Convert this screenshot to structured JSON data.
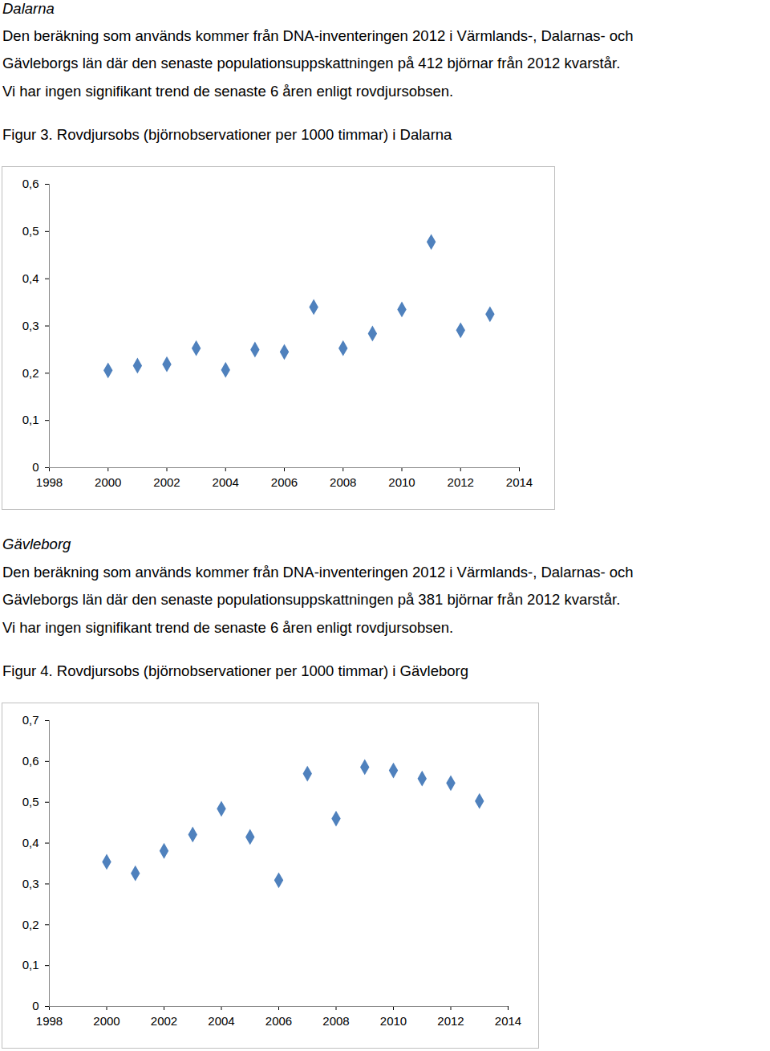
{
  "sections": [
    {
      "heading": "Dalarna",
      "lines": [
        "Den beräkning som används kommer från DNA-inventeringen 2012 i Värmlands-, Dalarnas- och",
        "Gävleborgs län där den senaste populationsuppskattningen på 412 björnar från 2012 kvarstår.",
        "Vi har ingen signifikant trend de senaste 6 åren enligt rovdjursobsen."
      ]
    },
    {
      "heading": "Gävleborg",
      "lines": [
        "Den beräkning som används kommer från DNA-inventeringen 2012 i Värmlands-, Dalarnas- och",
        "Gävleborgs län där den senaste populationsuppskattningen på 381 björnar från 2012 kvarstår.",
        "Vi har ingen signifikant trend de senaste 6 åren enligt rovdjursobsen."
      ]
    }
  ],
  "chart_data": [
    {
      "type": "scatter",
      "title": "Figur 3. Rovdjursobs (björnobservationer per 1000 timmar) i Dalarna",
      "x": [
        2000,
        2001,
        2002,
        2003,
        2004,
        2005,
        2006,
        2007,
        2008,
        2009,
        2010,
        2011,
        2012,
        2013
      ],
      "values": [
        0.206,
        0.216,
        0.219,
        0.253,
        0.207,
        0.25,
        0.245,
        0.34,
        0.253,
        0.284,
        0.335,
        0.478,
        0.291,
        0.325
      ],
      "color": "#4f81bd",
      "marker": "diamond",
      "grid": false,
      "xlim": [
        1998,
        2014
      ],
      "xticks": [
        1998,
        2000,
        2002,
        2004,
        2006,
        2008,
        2010,
        2012,
        2014
      ],
      "ylim": [
        0,
        0.6
      ],
      "yticks": [
        0,
        {
          "value": 0.1,
          "label": "0,1"
        },
        {
          "value": 0.2,
          "label": "0,2"
        },
        {
          "value": 0.3,
          "label": "0,3"
        },
        {
          "value": 0.4,
          "label": "0,4"
        },
        {
          "value": 0.5,
          "label": "0,5"
        },
        {
          "value": 0.6,
          "label": "0,6"
        }
      ]
    },
    {
      "type": "scatter",
      "title": "Figur 4. Rovdjursobs (björnobservationer per 1000 timmar) i Gävleborg",
      "x": [
        2000,
        2001,
        2002,
        2003,
        2004,
        2005,
        2006,
        2007,
        2008,
        2009,
        2010,
        2011,
        2012,
        2013
      ],
      "values": [
        0.354,
        0.326,
        0.381,
        0.421,
        0.484,
        0.415,
        0.309,
        0.57,
        0.46,
        0.586,
        0.578,
        0.558,
        0.547,
        0.503
      ],
      "color": "#4f81bd",
      "marker": "diamond",
      "grid": false,
      "xlim": [
        1998,
        2014
      ],
      "xticks": [
        1998,
        2000,
        2002,
        2004,
        2006,
        2008,
        2010,
        2012,
        2014
      ],
      "ylim": [
        0,
        0.7
      ],
      "yticks": [
        0,
        {
          "value": 0.1,
          "label": "0,1"
        },
        {
          "value": 0.2,
          "label": "0,2"
        },
        {
          "value": 0.3,
          "label": "0,3"
        },
        {
          "value": 0.4,
          "label": "0,4"
        },
        {
          "value": 0.5,
          "label": "0,5"
        },
        {
          "value": 0.6,
          "label": "0,6"
        },
        {
          "value": 0.7,
          "label": "0,7"
        }
      ]
    }
  ]
}
